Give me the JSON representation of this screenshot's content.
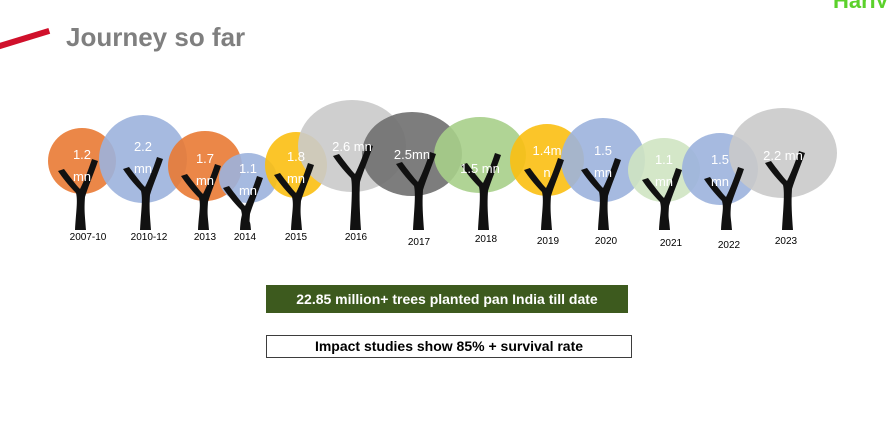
{
  "slide": {
    "title": "Journey so far",
    "brand_text": "Hariy",
    "stat_text": "22.85 million+ trees planted pan India till date",
    "impact_text": "Impact studies show 85% + survival rate"
  },
  "colors": {
    "orange": "#e97a34",
    "blue": "#9cb3dd",
    "gold": "#fbbf12",
    "lightgray": "#cacaca",
    "darkgray": "#6f6f6f",
    "green": "#a7cf8a",
    "palegreen": "#cfe4c2",
    "trunk": "#111111",
    "accent_red": "#d0102b"
  },
  "trees": [
    {
      "year": "2007-10",
      "label_line1": "1.2",
      "label_line2": "mn",
      "color": "orange"
    },
    {
      "year": "2010-12",
      "label_line1": "2.2",
      "label_line2": "mn",
      "color": "blue"
    },
    {
      "year": "2013",
      "label_line1": "1.7",
      "label_line2": "mn",
      "color": "orange"
    },
    {
      "year": "2014",
      "label_line1": "1.1",
      "label_line2": "mn",
      "color": "blue"
    },
    {
      "year": "2015",
      "label_line1": "1.8",
      "label_line2": "mn",
      "color": "gold"
    },
    {
      "year": "2016",
      "label_line1": "2.6 mn",
      "label_line2": "",
      "color": "lightgray"
    },
    {
      "year": "2017",
      "label_line1": "2.5mn",
      "label_line2": "",
      "color": "darkgray"
    },
    {
      "year": "2018",
      "label_line1": "1.5 mn",
      "label_line2": "",
      "color": "green"
    },
    {
      "year": "2019",
      "label_line1": "1.4m",
      "label_line2": "n",
      "color": "gold"
    },
    {
      "year": "2020",
      "label_line1": "1.5",
      "label_line2": "mn",
      "color": "blue"
    },
    {
      "year": "2021",
      "label_line1": "1.1",
      "label_line2": "mn",
      "color": "palegreen"
    },
    {
      "year": "2022",
      "label_line1": "1.5",
      "label_line2": "mn",
      "color": "blue"
    },
    {
      "year": "2023",
      "label_line1": "2.2 mn",
      "label_line2": "",
      "color": "lightgray"
    }
  ]
}
